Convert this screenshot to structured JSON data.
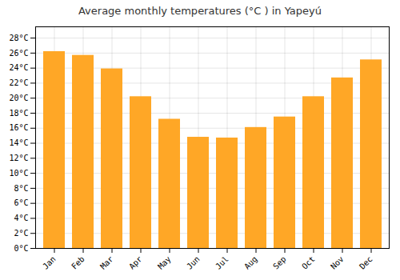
{
  "chart_data": {
    "type": "bar",
    "title": "Average monthly temperatures (°C ) in Yapeyú",
    "categories": [
      "Jan",
      "Feb",
      "Mar",
      "Apr",
      "May",
      "Jun",
      "Jul",
      "Aug",
      "Sep",
      "Oct",
      "Nov",
      "Dec"
    ],
    "values": [
      26.2,
      25.7,
      23.9,
      20.2,
      17.2,
      14.8,
      14.7,
      16.1,
      17.5,
      20.2,
      22.7,
      25.1
    ],
    "color": "#FFA726",
    "ylim": [
      0,
      29.5
    ],
    "yticks": [
      {
        "value": 0,
        "label": "0°C"
      },
      {
        "value": 2,
        "label": "2°C"
      },
      {
        "value": 4,
        "label": "4°C"
      },
      {
        "value": 6,
        "label": "6°C"
      },
      {
        "value": 8,
        "label": "8°C"
      },
      {
        "value": 10,
        "label": "10°C"
      },
      {
        "value": 12,
        "label": "12°C"
      },
      {
        "value": 14,
        "label": "14°C"
      },
      {
        "value": 16,
        "label": "16°C"
      },
      {
        "value": 18,
        "label": "18°C"
      },
      {
        "value": 20,
        "label": "20°C"
      },
      {
        "value": 22,
        "label": "22°C"
      },
      {
        "value": 24,
        "label": "24°C"
      },
      {
        "value": 26,
        "label": "26°C"
      },
      {
        "value": 28,
        "label": "28°C"
      }
    ],
    "grid": true
  }
}
